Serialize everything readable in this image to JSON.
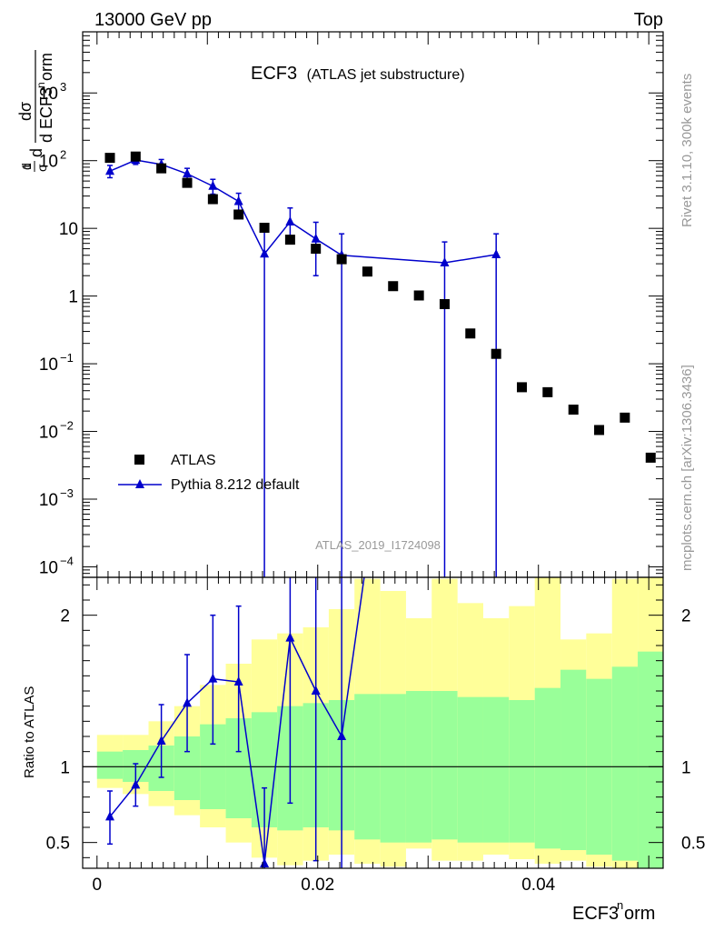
{
  "header": {
    "left": "13000 GeV pp",
    "right": "Top"
  },
  "side_labels": {
    "rivet": "Rivet 3.1.10,  300k events",
    "mcplots": "mcplots.cern.ch [arXiv:1306.3436]"
  },
  "plot_title": {
    "main": "ECF3",
    "sub": "(ATLAS jet substructure)"
  },
  "watermark": "ATLAS_2019_I1724098",
  "legend": {
    "data_label": "ATLAS",
    "mc_label": "Pythia 8.212 default"
  },
  "axes": {
    "y_main_label": "1/σ dσ/d ECF3^norm",
    "y_ratio_label": "Ratio to ATLAS",
    "x_label": "ECF3^norm"
  },
  "colors": {
    "data": "#000000",
    "mc": "#0000cc",
    "band_inner": "#99ff99",
    "band_outer": "#ffff99"
  },
  "chart_data": [
    {
      "type": "scatter",
      "scale_y": "log",
      "xlim": [
        -0.0013,
        0.0513
      ],
      "ylim": [
        7e-05,
        8000
      ],
      "x_ticks": [
        0,
        0.02,
        0.04
      ],
      "y_ticks": [
        "10^-4",
        "10^-3",
        "10^-2",
        "10^-1",
        "1",
        "10",
        "10^2",
        "10^3"
      ],
      "series": [
        {
          "name": "ATLAS",
          "marker": "square",
          "x": [
            0.00117,
            0.0035,
            0.00583,
            0.00817,
            0.0105,
            0.01283,
            0.01517,
            0.0175,
            0.01983,
            0.02217,
            0.0245,
            0.02683,
            0.02917,
            0.0315,
            0.03383,
            0.03617,
            0.0385,
            0.04083,
            0.04317,
            0.0455,
            0.04783,
            0.05017
          ],
          "y": [
            110,
            115,
            77,
            47,
            27,
            16,
            10.2,
            6.8,
            5.0,
            3.5,
            2.3,
            1.4,
            1.02,
            0.76,
            0.28,
            0.14,
            0.045,
            0.038,
            0.021,
            0.0105,
            0.016,
            0.0041
          ]
        },
        {
          "name": "Pythia 8.212 default",
          "marker": "triangle",
          "x": [
            0.00117,
            0.0035,
            0.00583,
            0.00817,
            0.0105,
            0.01283,
            0.01517,
            0.0175,
            0.01983,
            0.02217,
            0.0315,
            0.03617
          ],
          "y": [
            70,
            102,
            88,
            64,
            42,
            25,
            4.2,
            12.5,
            7.0,
            4.0,
            3.1,
            4.1
          ],
          "y_low": [
            56,
            88,
            74,
            54,
            32,
            18,
            1e-05,
            7.5,
            2.0,
            1e-05,
            1e-05,
            1e-05
          ],
          "y_high": [
            85,
            116,
            104,
            77,
            53,
            33,
            10.5,
            20,
            12.3,
            8.3,
            6.3,
            8.3
          ]
        }
      ]
    },
    {
      "type": "line",
      "xlim": [
        -0.0013,
        0.0513
      ],
      "ylim": [
        0.33,
        2.25
      ],
      "y_ticks": [
        0.5,
        1,
        2
      ],
      "reference_line": 1,
      "bin_edges": [
        0,
        0.00233,
        0.00467,
        0.007,
        0.00933,
        0.01167,
        0.014,
        0.01633,
        0.01867,
        0.021,
        0.02333,
        0.02567,
        0.028,
        0.03033,
        0.03267,
        0.035,
        0.03733,
        0.03967,
        0.042,
        0.04433,
        0.04667,
        0.049,
        0.05133
      ],
      "band_inner_low": [
        0.92,
        0.9,
        0.84,
        0.78,
        0.72,
        0.66,
        0.6,
        0.58,
        0.6,
        0.58,
        0.52,
        0.5,
        0.5,
        0.52,
        0.5,
        0.5,
        0.5,
        0.46,
        0.45,
        0.42,
        0.38,
        0.33
      ],
      "band_inner_high": [
        1.1,
        1.11,
        1.14,
        1.2,
        1.28,
        1.32,
        1.36,
        1.4,
        1.42,
        1.44,
        1.48,
        1.48,
        1.5,
        1.5,
        1.46,
        1.46,
        1.44,
        1.52,
        1.64,
        1.58,
        1.66,
        1.76
      ],
      "band_outer_low": [
        0.86,
        0.82,
        0.74,
        0.68,
        0.6,
        0.5,
        0.4,
        0.35,
        0.38,
        0.42,
        0.36,
        0.34,
        0.46,
        0.38,
        0.38,
        0.42,
        0.39,
        0.36,
        0.38,
        0.34,
        0.33,
        0.33
      ],
      "band_outer_high": [
        1.21,
        1.21,
        1.3,
        1.4,
        1.54,
        1.68,
        1.84,
        1.88,
        1.92,
        2.04,
        2.24,
        2.16,
        1.98,
        2.24,
        2.08,
        1.98,
        2.06,
        2.5,
        1.84,
        1.88,
        2.24,
        2.5
      ],
      "series": [
        {
          "name": "Pythia 8.212 default",
          "x": [
            0.00117,
            0.0035,
            0.00583,
            0.00817,
            0.0105,
            0.01283,
            0.01517,
            0.0175,
            0.01983,
            0.02217,
            0.0245
          ],
          "y": [
            0.67,
            0.88,
            1.17,
            1.42,
            1.58,
            1.56,
            0.36,
            1.85,
            1.5,
            1.2,
            2.4
          ],
          "y_low": [
            0.49,
            0.74,
            0.93,
            1.1,
            1.15,
            1.1,
            0.0,
            0.76,
            0.38,
            0.0,
            null
          ],
          "y_high": [
            0.84,
            1.02,
            1.41,
            1.74,
            2.0,
            2.06,
            0.86,
            2.4,
            2.4,
            2.4,
            null
          ]
        }
      ]
    }
  ]
}
